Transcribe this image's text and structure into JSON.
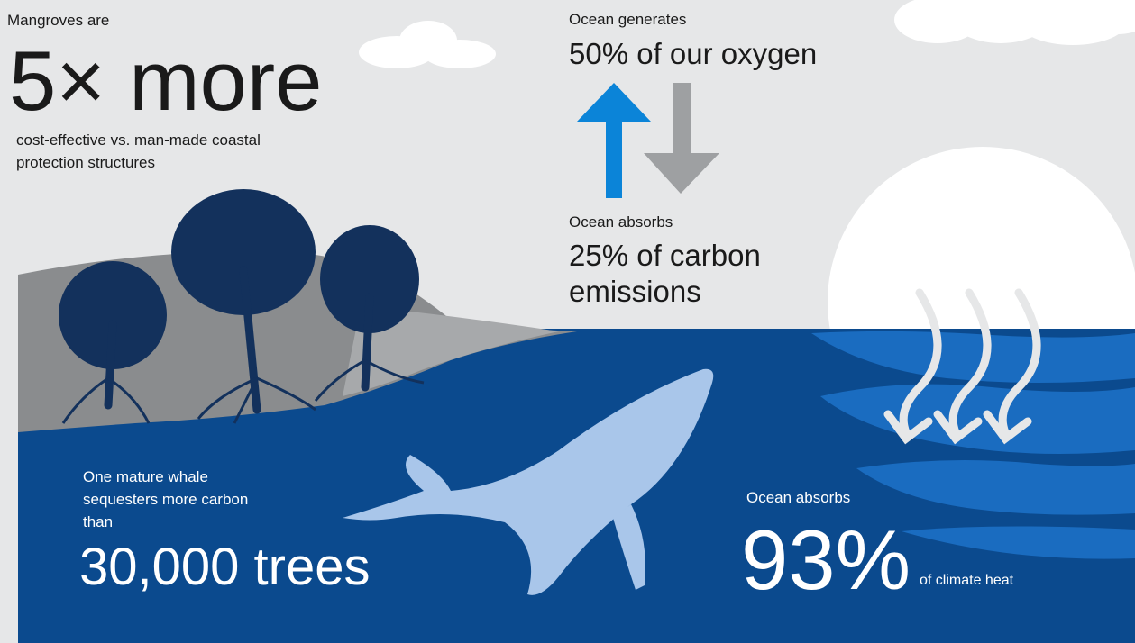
{
  "mangroves": {
    "intro": "Mangroves are",
    "headline": "5× more",
    "detail": "cost-effective vs. man-made coastal protection structures"
  },
  "oxygen": {
    "intro": "Ocean generates",
    "headline": "50% of our oxygen"
  },
  "carbon": {
    "intro": "Ocean absorbs",
    "headline": "25% of carbon emissions"
  },
  "whale": {
    "intro": "One mature whale sequesters more carbon than",
    "headline": "30,000 trees"
  },
  "heat": {
    "intro": "Ocean absorbs",
    "headline": "93%",
    "detail": "of climate heat"
  }
}
